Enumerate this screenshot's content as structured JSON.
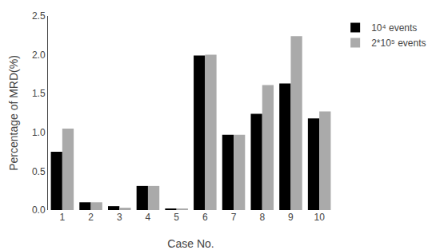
{
  "chart_data": {
    "type": "bar",
    "categories": [
      "1",
      "2",
      "3",
      "4",
      "5",
      "6",
      "7",
      "8",
      "9",
      "10"
    ],
    "series": [
      {
        "name": "10⁴ events",
        "color": "#000000",
        "values": [
          0.75,
          0.1,
          0.05,
          0.31,
          0.02,
          1.99,
          0.97,
          1.24,
          1.63,
          1.18
        ]
      },
      {
        "name": "2*10⁵ events",
        "color": "#aaaaaa",
        "values": [
          1.05,
          0.1,
          0.03,
          0.31,
          0.02,
          2.0,
          0.97,
          1.61,
          2.24,
          1.27
        ]
      }
    ],
    "xlabel": "Case No.",
    "ylabel": "Percentage of MRD(%)",
    "ylim": [
      0,
      2.5
    ],
    "yticks": [
      {
        "value": 0.0,
        "label": "0.0"
      },
      0.5,
      {
        "value": 1.0,
        "label": "1.0"
      },
      1.5,
      {
        "value": 2.0,
        "label": "2.0"
      },
      2.5
    ],
    "grid": false,
    "legend": "upper right"
  }
}
